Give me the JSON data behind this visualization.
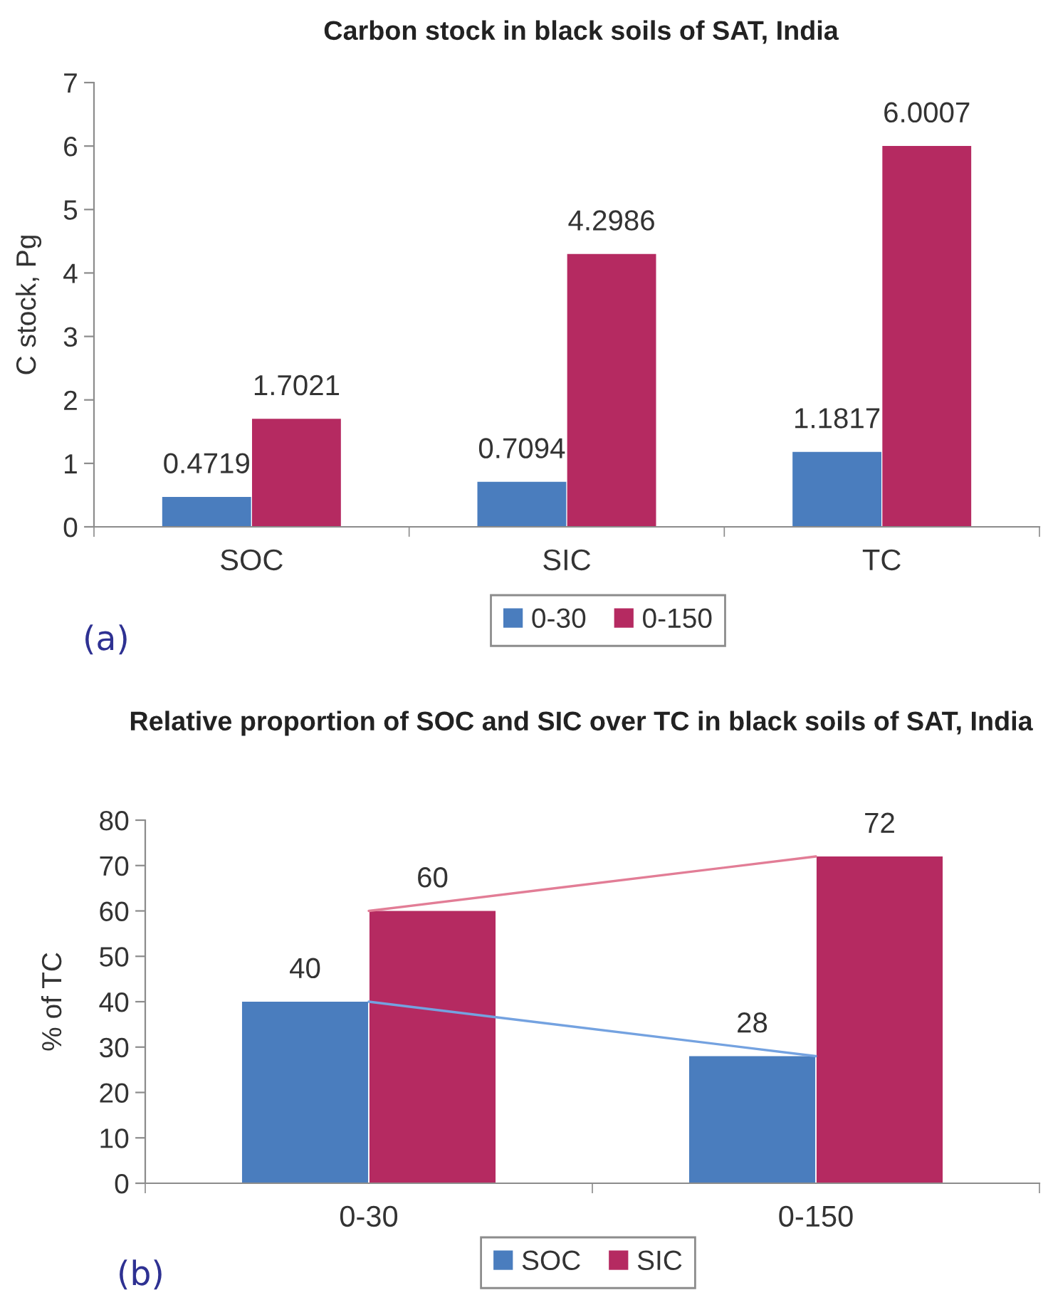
{
  "chart_data": [
    {
      "type": "bar",
      "title": "Carbon stock in black soils of SAT, India",
      "ylabel": "C stock, Pg",
      "categories": [
        "SOC",
        "SIC",
        "TC"
      ],
      "series": [
        {
          "name": "0-30",
          "color": "#4a7dbe",
          "values": [
            0.4719,
            0.7094,
            1.1817
          ]
        },
        {
          "name": "0-150",
          "color": "#b52a61",
          "values": [
            1.7021,
            4.2986,
            6.0007
          ]
        }
      ],
      "ylim": [
        0,
        7
      ],
      "yticks": [
        0,
        1,
        2,
        3,
        4,
        5,
        6,
        7
      ],
      "data_labels": true,
      "legend": "bottom",
      "annotations": [
        "(a)"
      ]
    },
    {
      "type": "bar",
      "title": "Relative proportion of SOC and SIC over TC in black soils of SAT, India",
      "ylabel": "% of TC",
      "categories": [
        "0-30",
        "0-150"
      ],
      "series": [
        {
          "name": "SOC",
          "color": "#4a7dbe",
          "values": [
            40,
            28
          ],
          "value_labels": [
            "40",
            "28"
          ]
        },
        {
          "name": "SIC",
          "color": "#b52a61",
          "values": [
            60,
            72
          ],
          "value_labels": [
            "60",
            "72"
          ]
        },
        {
          "type": "line",
          "color": "#74a2e0",
          "values": [
            40,
            28
          ]
        },
        {
          "type": "line",
          "color": "#e27d96",
          "values": [
            60,
            72
          ]
        }
      ],
      "ylim": [
        0,
        80
      ],
      "yticks": [
        0,
        10,
        20,
        30,
        40,
        50,
        60,
        70,
        80
      ],
      "legend": "bottom",
      "annotations": [
        "(b)"
      ]
    }
  ]
}
